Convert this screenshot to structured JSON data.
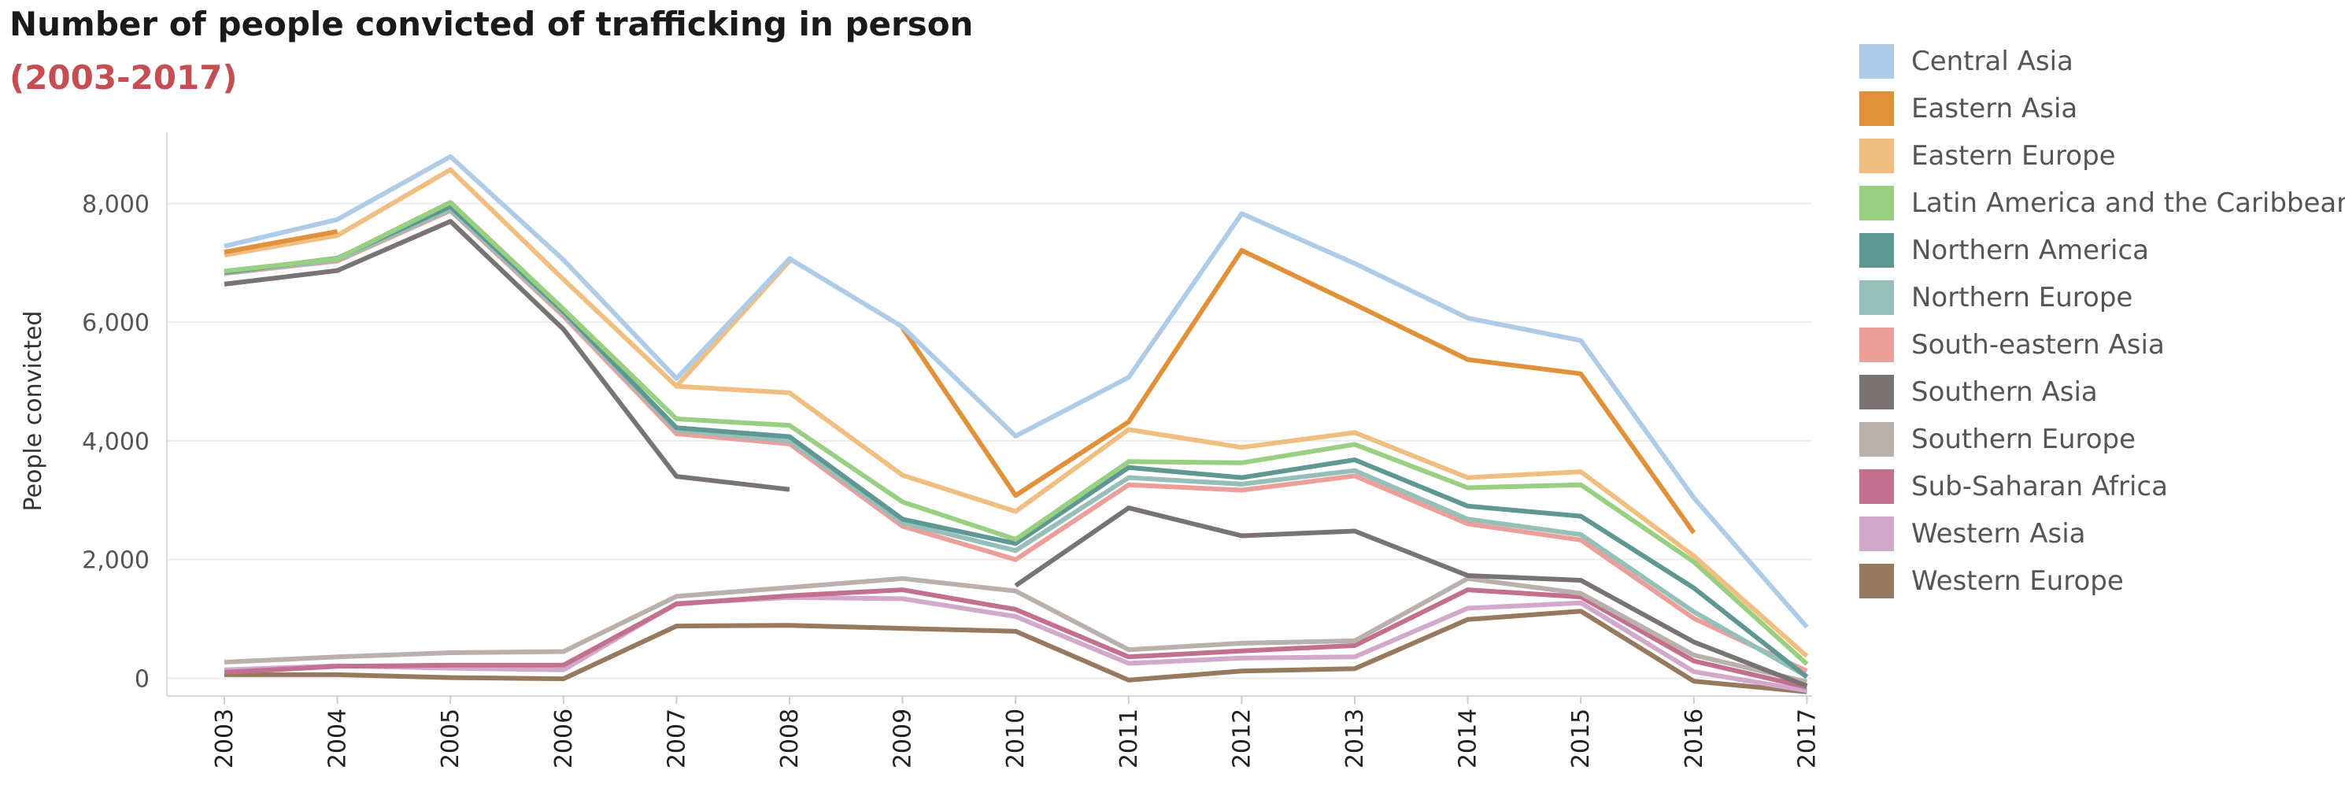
{
  "chart_data": {
    "type": "line",
    "title": "Number of people convicted of trafficking in person",
    "subtitle": "(2003-2017)",
    "subtitle_color": "#c44e52",
    "ylabel": "People convicted",
    "xlabel": "",
    "ylim": [
      -300,
      9200
    ],
    "yticks": [
      0,
      2000,
      4000,
      6000,
      8000
    ],
    "ytick_labels": [
      "0",
      "2,000",
      "4,000",
      "6,000",
      "8,000"
    ],
    "x": [
      "2003",
      "2004",
      "2005",
      "2006",
      "2007",
      "2008",
      "2009",
      "2010",
      "2011",
      "2012",
      "2013",
      "2014",
      "2015",
      "2016",
      "2017"
    ],
    "grid": true,
    "legend_position": "right",
    "series": [
      {
        "name": "Central Asia",
        "color": "#aecbe8",
        "values": [
          7280,
          7730,
          8790,
          7050,
          5050,
          7070,
          5920,
          4080,
          5070,
          7830,
          6990,
          6070,
          5690,
          3040,
          860
        ]
      },
      {
        "name": "Eastern Asia",
        "color": "#e0913a",
        "values": [
          7180,
          7530,
          null,
          null,
          null,
          null,
          5900,
          3080,
          4320,
          7210,
          6300,
          5370,
          5130,
          2450,
          null
        ]
      },
      {
        "name": "Eastern Europe",
        "color": "#f1be82",
        "values": [
          7130,
          7460,
          8570,
          6720,
          4920,
          7030,
          null,
          null,
          null,
          null,
          null,
          null,
          null,
          null,
          null
        ]
      },
      {
        "name": "Eastern Europe",
        "color": "#f1be82",
        "values": [
          null,
          null,
          null,
          null,
          4920,
          4810,
          3420,
          2810,
          4190,
          3890,
          4140,
          3380,
          3480,
          2060,
          370
        ]
      },
      {
        "name": "Latin America and the Caribbean",
        "color": "#98cf80",
        "values": [
          6860,
          7070,
          8020,
          6220,
          4370,
          4260,
          2970,
          2340,
          3650,
          3630,
          3940,
          3210,
          3260,
          1960,
          240
        ]
      },
      {
        "name": "Northern America",
        "color": "#5f9893",
        "values": [
          6840,
          7080,
          7950,
          6180,
          4220,
          4070,
          2680,
          2270,
          3550,
          3380,
          3680,
          2900,
          2730,
          1520,
          20
        ]
      },
      {
        "name": "Northern Europe",
        "color": "#96bfba",
        "values": [
          6830,
          7050,
          7900,
          6140,
          4180,
          4000,
          2620,
          2150,
          3380,
          3270,
          3500,
          2680,
          2420,
          1120,
          30
        ]
      },
      {
        "name": "South-eastern Asia",
        "color": "#ec9f9a",
        "values": [
          6820,
          7030,
          7880,
          6100,
          4120,
          3950,
          2560,
          2000,
          3260,
          3170,
          3410,
          2600,
          2330,
          1010,
          120
        ]
      },
      {
        "name": "Southern Asia",
        "color": "#7a7374",
        "values": [
          6640,
          6870,
          7700,
          5880,
          3400,
          3180,
          null,
          1560,
          2870,
          2400,
          2480,
          1730,
          1650,
          610,
          -130
        ]
      },
      {
        "name": "Southern Europe",
        "color": "#bab1ac",
        "values": [
          270,
          360,
          430,
          450,
          1380,
          1530,
          1680,
          1470,
          480,
          590,
          630,
          1680,
          1430,
          390,
          -60
        ]
      },
      {
        "name": "Sub-Saharan Africa",
        "color": "#c2708e",
        "values": [
          100,
          200,
          220,
          220,
          1250,
          1390,
          1490,
          1160,
          360,
          460,
          550,
          1490,
          1370,
          290,
          -150
        ]
      },
      {
        "name": "Western Asia",
        "color": "#d2a8cb",
        "values": [
          140,
          210,
          170,
          140,
          1260,
          1360,
          1340,
          1040,
          250,
          340,
          360,
          1180,
          1270,
          110,
          -210
        ]
      },
      {
        "name": "Western Europe",
        "color": "#977960",
        "values": [
          60,
          60,
          10,
          -10,
          880,
          890,
          840,
          790,
          -30,
          120,
          160,
          990,
          1130,
          -50,
          -230
        ]
      }
    ],
    "legend": [
      {
        "name": "Central Asia",
        "color": "#aecbe8"
      },
      {
        "name": "Eastern Asia",
        "color": "#e0913a"
      },
      {
        "name": "Eastern Europe",
        "color": "#f1be82"
      },
      {
        "name": "Latin America and the Caribbean",
        "color": "#98cf80"
      },
      {
        "name": "Northern America",
        "color": "#5f9893"
      },
      {
        "name": "Northern Europe",
        "color": "#96bfba"
      },
      {
        "name": "South-eastern Asia",
        "color": "#ec9f9a"
      },
      {
        "name": "Southern Asia",
        "color": "#7a7374"
      },
      {
        "name": "Southern Europe",
        "color": "#bab1ac"
      },
      {
        "name": "Sub-Saharan Africa",
        "color": "#c2708e"
      },
      {
        "name": "Western Asia",
        "color": "#d2a8cb"
      },
      {
        "name": "Western Europe",
        "color": "#977960"
      }
    ]
  }
}
